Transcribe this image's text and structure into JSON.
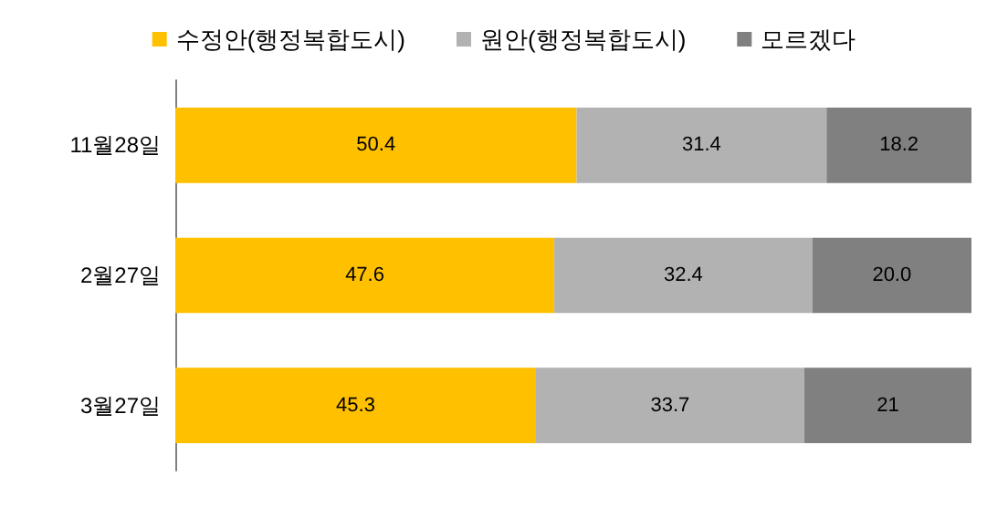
{
  "chart_data": {
    "type": "bar",
    "orientation": "horizontal",
    "stacked": true,
    "categories": [
      "11월28일",
      "2월27일",
      "3월27일"
    ],
    "series": [
      {
        "name": "수정안(행정복합도시)",
        "color": "#ffc000",
        "values": [
          50.4,
          47.6,
          45.3
        ],
        "value_labels": [
          "50.4",
          "47.6",
          "45.3"
        ]
      },
      {
        "name": "원안(행정복합도시)",
        "color": "#b2b2b2",
        "values": [
          31.4,
          32.4,
          33.7
        ],
        "value_labels": [
          "31.4",
          "32.4",
          "33.7"
        ]
      },
      {
        "name": "모르겠다",
        "color": "#808080",
        "values": [
          18.2,
          20.0,
          21
        ],
        "value_labels": [
          "18.2",
          "20.0",
          "21"
        ]
      }
    ],
    "xlim": [
      0,
      100
    ],
    "tick_labels": "y",
    "legend": "top"
  }
}
